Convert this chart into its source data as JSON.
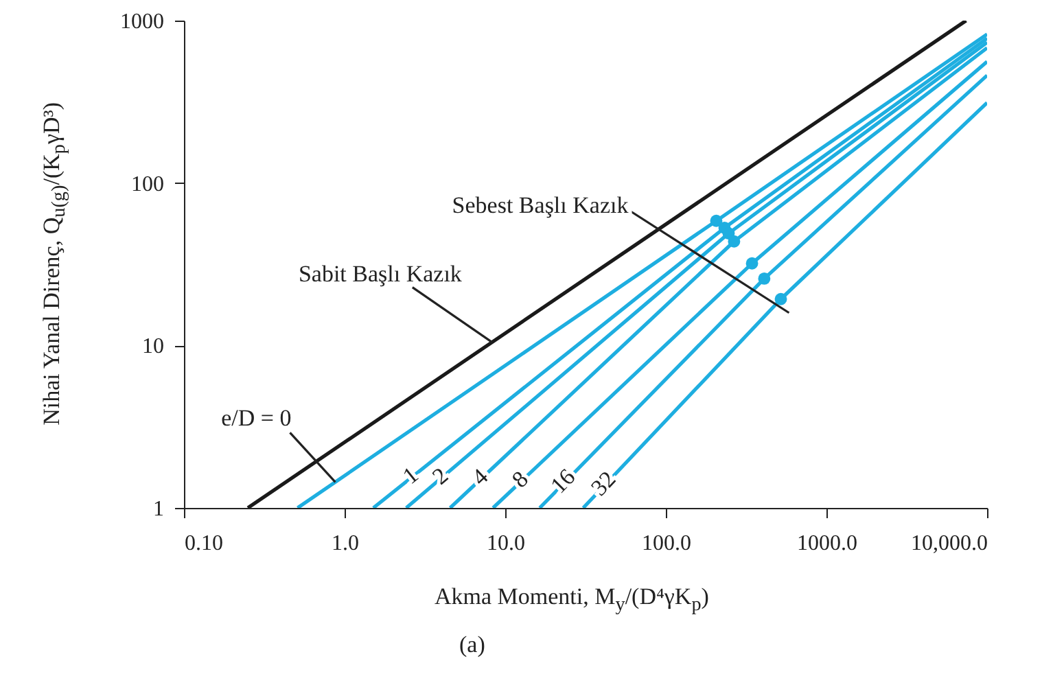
{
  "chart_data": {
    "type": "line",
    "xlabel": "Akma Momenti, M$_{y}$/(D⁴γK$_{p}$)",
    "ylabel": "Nihai Yanal Direnç, Q$_{u(g)}$/(K$_{p}$γD³)",
    "log": "xy",
    "grid": false,
    "xlim": [
      0.1,
      10000
    ],
    "ylim": [
      1,
      1000
    ],
    "xticks": [
      {
        "value": 0.1,
        "label": "0.10"
      },
      {
        "value": 1,
        "label": "1.0"
      },
      {
        "value": 10,
        "label": "10.0"
      },
      {
        "value": 100,
        "label": "100.0"
      },
      {
        "value": 1000,
        "label": "1000.0"
      },
      {
        "value": 10000,
        "label": "10,000.0"
      }
    ],
    "yticks": [
      1,
      10,
      100,
      1000
    ],
    "series": [
      {
        "name": "Sabit Başlı Kazık",
        "color": "#1a1a1a",
        "x": [
          0.25,
          7400
        ],
        "values": [
          1,
          1000
        ]
      },
      {
        "name": "e/D = 0",
        "color": "#1eaee0",
        "x": [
          0.51,
          206,
          10000
        ],
        "values": [
          1,
          58.5,
          825
        ]
      },
      {
        "name": "1",
        "color": "#1eaee0",
        "x": [
          1.51,
          232,
          10000
        ],
        "values": [
          1,
          53,
          778
        ]
      },
      {
        "name": "2",
        "color": "#1eaee0",
        "x": [
          2.42,
          246,
          10000
        ],
        "values": [
          1,
          49,
          734
        ]
      },
      {
        "name": "4",
        "color": "#1eaee0",
        "x": [
          4.54,
          266,
          10000
        ],
        "values": [
          1,
          43.7,
          679
        ]
      },
      {
        "name": "8",
        "color": "#1eaee0",
        "x": [
          8.4,
          344,
          10000
        ],
        "values": [
          1,
          32,
          559
        ]
      },
      {
        "name": "16",
        "color": "#1eaee0",
        "x": [
          16.4,
          410,
          10000
        ],
        "values": [
          1,
          25.8,
          460
        ]
      },
      {
        "name": "32",
        "color": "#1eaee0",
        "x": [
          30.6,
          520,
          10000
        ],
        "values": [
          1,
          19.3,
          312
        ]
      },
      {
        "type": "scatter",
        "marker": "circle",
        "color": "#1eaee0",
        "x": [
          206,
          232,
          246,
          266,
          344,
          410,
          520
        ],
        "values": [
          58.5,
          53,
          49,
          43.7,
          32,
          25.8,
          19.3
        ]
      }
    ],
    "annotations": [
      "Sebest Başlı Kazık",
      "(a)"
    ]
  }
}
